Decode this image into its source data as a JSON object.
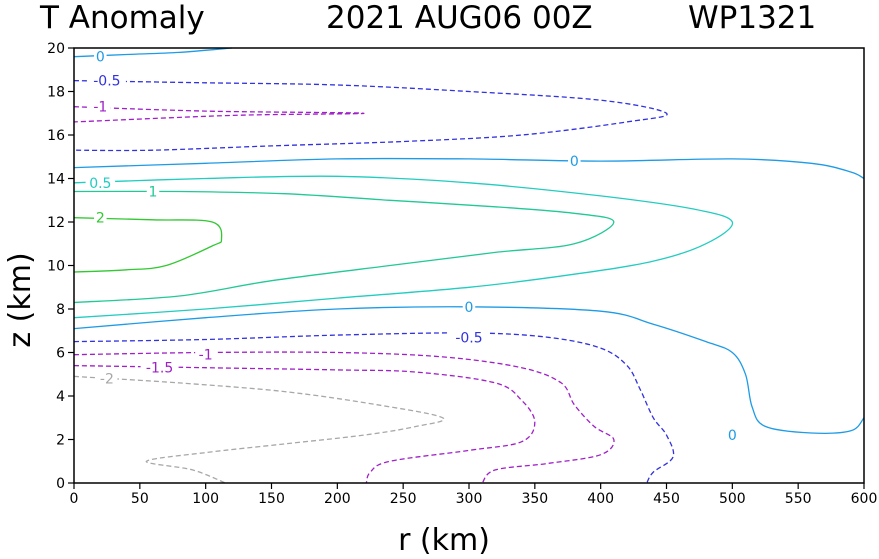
{
  "chart_data": {
    "type": "contour",
    "title_left": "T Anomaly",
    "title_date": "2021 AUG06 00Z",
    "title_storm": "WP1321",
    "xlabel": "r (km)",
    "ylabel": "z (km)",
    "xlim": [
      0,
      600
    ],
    "ylim": [
      0,
      20
    ],
    "xticks": [
      0,
      50,
      100,
      150,
      200,
      250,
      300,
      350,
      400,
      450,
      500,
      550,
      600
    ],
    "yticks": [
      0,
      2,
      4,
      6,
      8,
      10,
      12,
      14,
      16,
      18,
      20
    ],
    "contours": [
      {
        "level": "0",
        "color": "#1e9be6",
        "dash": false,
        "labels": [
          {
            "text": "0",
            "r": 20,
            "z": 19.6
          }
        ],
        "points": [
          [
            0,
            19.6
          ],
          [
            40,
            19.7
          ],
          [
            80,
            19.8
          ],
          [
            120,
            20
          ]
        ]
      },
      {
        "level": "-0.5",
        "color": "#3232e0",
        "dash": true,
        "labels": [
          {
            "text": "-0.5",
            "r": 25,
            "z": 18.5
          }
        ],
        "points": [
          [
            0,
            18.5
          ],
          [
            100,
            18.4
          ],
          [
            200,
            18.3
          ],
          [
            300,
            18.0
          ],
          [
            400,
            17.6
          ],
          [
            450,
            17.0
          ],
          [
            420,
            16.6
          ],
          [
            340,
            16.0
          ],
          [
            250,
            15.7
          ],
          [
            150,
            15.5
          ],
          [
            60,
            15.3
          ],
          [
            0,
            15.3
          ]
        ]
      },
      {
        "level": "-1",
        "color": "#a020c8",
        "dash": true,
        "labels": [
          {
            "text": "-1",
            "r": 20,
            "z": 17.3
          }
        ],
        "points": [
          [
            0,
            17.3
          ],
          [
            100,
            17.1
          ],
          [
            220,
            17.0
          ],
          [
            120,
            16.9
          ],
          [
            0,
            16.6
          ]
        ]
      },
      {
        "level": "0",
        "color": "#1e9be6",
        "dash": false,
        "labels": [
          {
            "text": "0",
            "r": 380,
            "z": 14.8
          }
        ],
        "points": [
          [
            0,
            14.5
          ],
          [
            100,
            14.7
          ],
          [
            200,
            14.9
          ],
          [
            300,
            14.9
          ],
          [
            400,
            14.8
          ],
          [
            500,
            14.9
          ],
          [
            560,
            14.7
          ],
          [
            590,
            14.3
          ],
          [
            600,
            14.0
          ]
        ]
      },
      {
        "level": "0.5",
        "color": "#22ccc0",
        "dash": false,
        "labels": [
          {
            "text": "0.5",
            "r": 20,
            "z": 13.8
          }
        ],
        "points": [
          [
            0,
            13.8
          ],
          [
            100,
            14.0
          ],
          [
            200,
            14.1
          ],
          [
            300,
            13.8
          ],
          [
            400,
            13.2
          ],
          [
            470,
            12.6
          ],
          [
            500,
            12.0
          ],
          [
            480,
            11.0
          ],
          [
            440,
            10.2
          ],
          [
            380,
            9.6
          ],
          [
            300,
            9.0
          ],
          [
            200,
            8.5
          ],
          [
            100,
            8.0
          ],
          [
            0,
            7.6
          ]
        ]
      },
      {
        "level": "1",
        "color": "#22c896",
        "dash": false,
        "labels": [
          {
            "text": "1",
            "r": 60,
            "z": 13.4
          }
        ],
        "points": [
          [
            0,
            13.4
          ],
          [
            80,
            13.4
          ],
          [
            160,
            13.3
          ],
          [
            240,
            13.0
          ],
          [
            320,
            12.7
          ],
          [
            380,
            12.4
          ],
          [
            410,
            12.0
          ],
          [
            380,
            11.0
          ],
          [
            320,
            10.6
          ],
          [
            240,
            10.0
          ],
          [
            150,
            9.3
          ],
          [
            80,
            8.6
          ],
          [
            0,
            8.3
          ]
        ]
      },
      {
        "level": "2",
        "color": "#32c832",
        "dash": false,
        "labels": [
          {
            "text": "2",
            "r": 20,
            "z": 12.2
          }
        ],
        "points": [
          [
            0,
            12.2
          ],
          [
            60,
            12.1
          ],
          [
            105,
            12.0
          ],
          [
            112,
            11.2
          ],
          [
            105,
            10.9
          ],
          [
            70,
            10.0
          ],
          [
            40,
            9.8
          ],
          [
            0,
            9.7
          ]
        ]
      },
      {
        "level": "0",
        "color": "#1e9be6",
        "dash": false,
        "labels": [
          {
            "text": "0",
            "r": 300,
            "z": 8.1
          },
          {
            "text": "0",
            "r": 500,
            "z": 2.2
          }
        ],
        "points": [
          [
            0,
            7.1
          ],
          [
            100,
            7.6
          ],
          [
            200,
            8.0
          ],
          [
            300,
            8.1
          ],
          [
            400,
            7.9
          ],
          [
            440,
            7.3
          ],
          [
            480,
            6.5
          ],
          [
            500,
            6.0
          ],
          [
            510,
            5.0
          ],
          [
            515,
            3.5
          ],
          [
            525,
            2.6
          ],
          [
            560,
            2.3
          ],
          [
            590,
            2.4
          ],
          [
            600,
            3.0
          ]
        ]
      },
      {
        "level": "-0.5",
        "color": "#3232e0",
        "dash": true,
        "labels": [
          {
            "text": "-0.5",
            "r": 300,
            "z": 6.7
          }
        ],
        "points": [
          [
            0,
            6.5
          ],
          [
            100,
            6.6
          ],
          [
            200,
            6.8
          ],
          [
            300,
            6.9
          ],
          [
            360,
            6.7
          ],
          [
            400,
            6.2
          ],
          [
            420,
            5.4
          ],
          [
            430,
            4.3
          ],
          [
            440,
            3.0
          ],
          [
            450,
            2.2
          ],
          [
            455,
            1.2
          ],
          [
            440,
            0.5
          ],
          [
            435,
            0
          ]
        ]
      },
      {
        "level": "-1",
        "color": "#a020c8",
        "dash": true,
        "labels": [
          {
            "text": "-1",
            "r": 100,
            "z": 5.9
          }
        ],
        "points": [
          [
            0,
            5.9
          ],
          [
            100,
            6.0
          ],
          [
            200,
            6.0
          ],
          [
            280,
            5.8
          ],
          [
            340,
            5.3
          ],
          [
            370,
            4.6
          ],
          [
            380,
            3.6
          ],
          [
            395,
            2.6
          ],
          [
            410,
            2.0
          ],
          [
            400,
            1.3
          ],
          [
            360,
            0.9
          ],
          [
            320,
            0.6
          ],
          [
            310,
            0
          ]
        ]
      },
      {
        "level": "-1.5",
        "color": "#a020c8",
        "dash": true,
        "labels": [
          {
            "text": "-1.5",
            "r": 65,
            "z": 5.3
          }
        ],
        "points": [
          [
            0,
            5.4
          ],
          [
            100,
            5.3
          ],
          [
            200,
            5.2
          ],
          [
            260,
            5.1
          ],
          [
            320,
            4.6
          ],
          [
            340,
            3.8
          ],
          [
            350,
            2.8
          ],
          [
            340,
            1.9
          ],
          [
            300,
            1.5
          ],
          [
            240,
            1.0
          ],
          [
            225,
            0.5
          ],
          [
            222,
            0
          ]
        ]
      },
      {
        "level": "-2",
        "color": "#a8a8a8",
        "dash": true,
        "labels": [
          {
            "text": "-2",
            "r": 25,
            "z": 4.8
          }
        ],
        "points": [
          [
            0,
            4.9
          ],
          [
            80,
            4.6
          ],
          [
            160,
            4.2
          ],
          [
            230,
            3.6
          ],
          [
            280,
            3.0
          ],
          [
            260,
            2.6
          ],
          [
            220,
            2.2
          ],
          [
            160,
            1.8
          ],
          [
            100,
            1.4
          ],
          [
            55,
            1.0
          ],
          [
            90,
            0.6
          ],
          [
            115,
            0
          ]
        ]
      }
    ]
  }
}
